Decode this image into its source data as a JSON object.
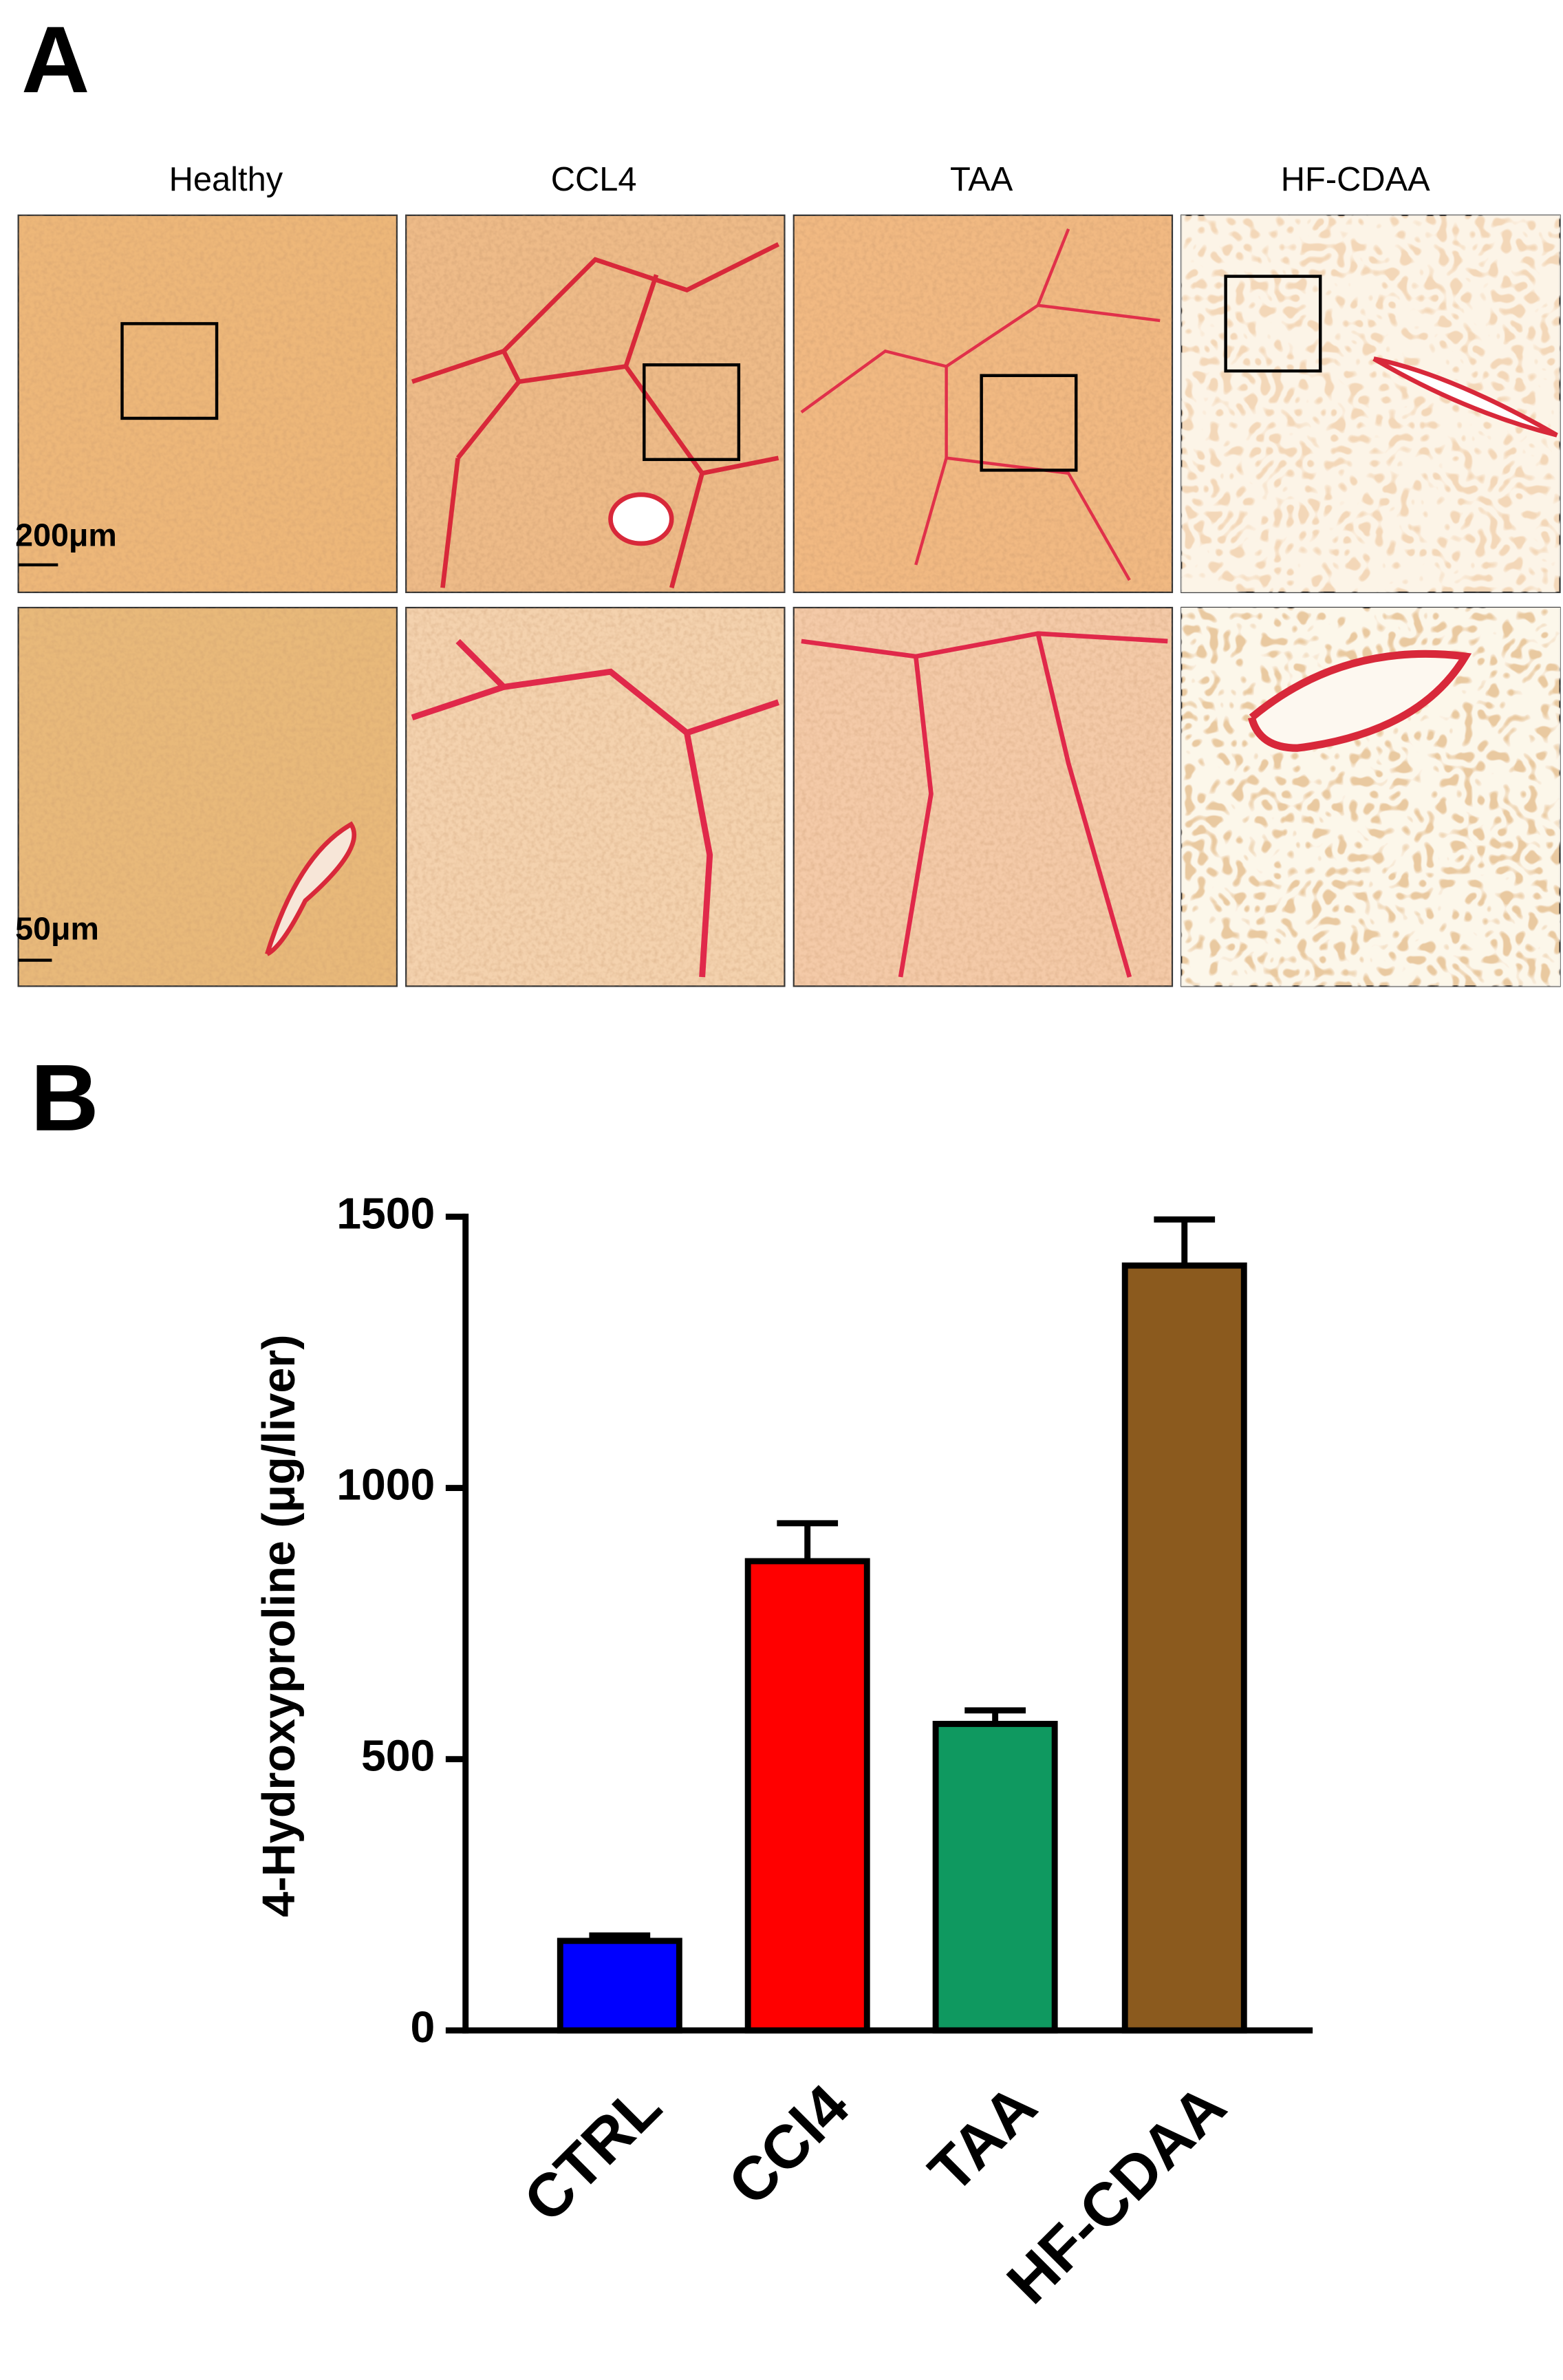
{
  "panel_a": {
    "label": "A",
    "columns": [
      "Healthy",
      "CCL4",
      "TAA",
      "HF-CDAA"
    ],
    "scale_bars": [
      "200μm",
      "50μm"
    ]
  },
  "chart_data": {
    "type": "bar",
    "panel_label": "B",
    "y_label": "4-Hydroxyproline (μg/liver)",
    "categories": [
      "CTRL",
      "CCl4",
      "TAA",
      "HF-CDAA"
    ],
    "values": [
      165,
      865,
      565,
      1410
    ],
    "errors": [
      10,
      70,
      25,
      85
    ],
    "colors": [
      "#0000ff",
      "#ff0000",
      "#0f9960",
      "#8b5a1e"
    ],
    "ylim": [
      0,
      1500
    ],
    "yticks": [
      0,
      500,
      1000,
      1500
    ]
  }
}
